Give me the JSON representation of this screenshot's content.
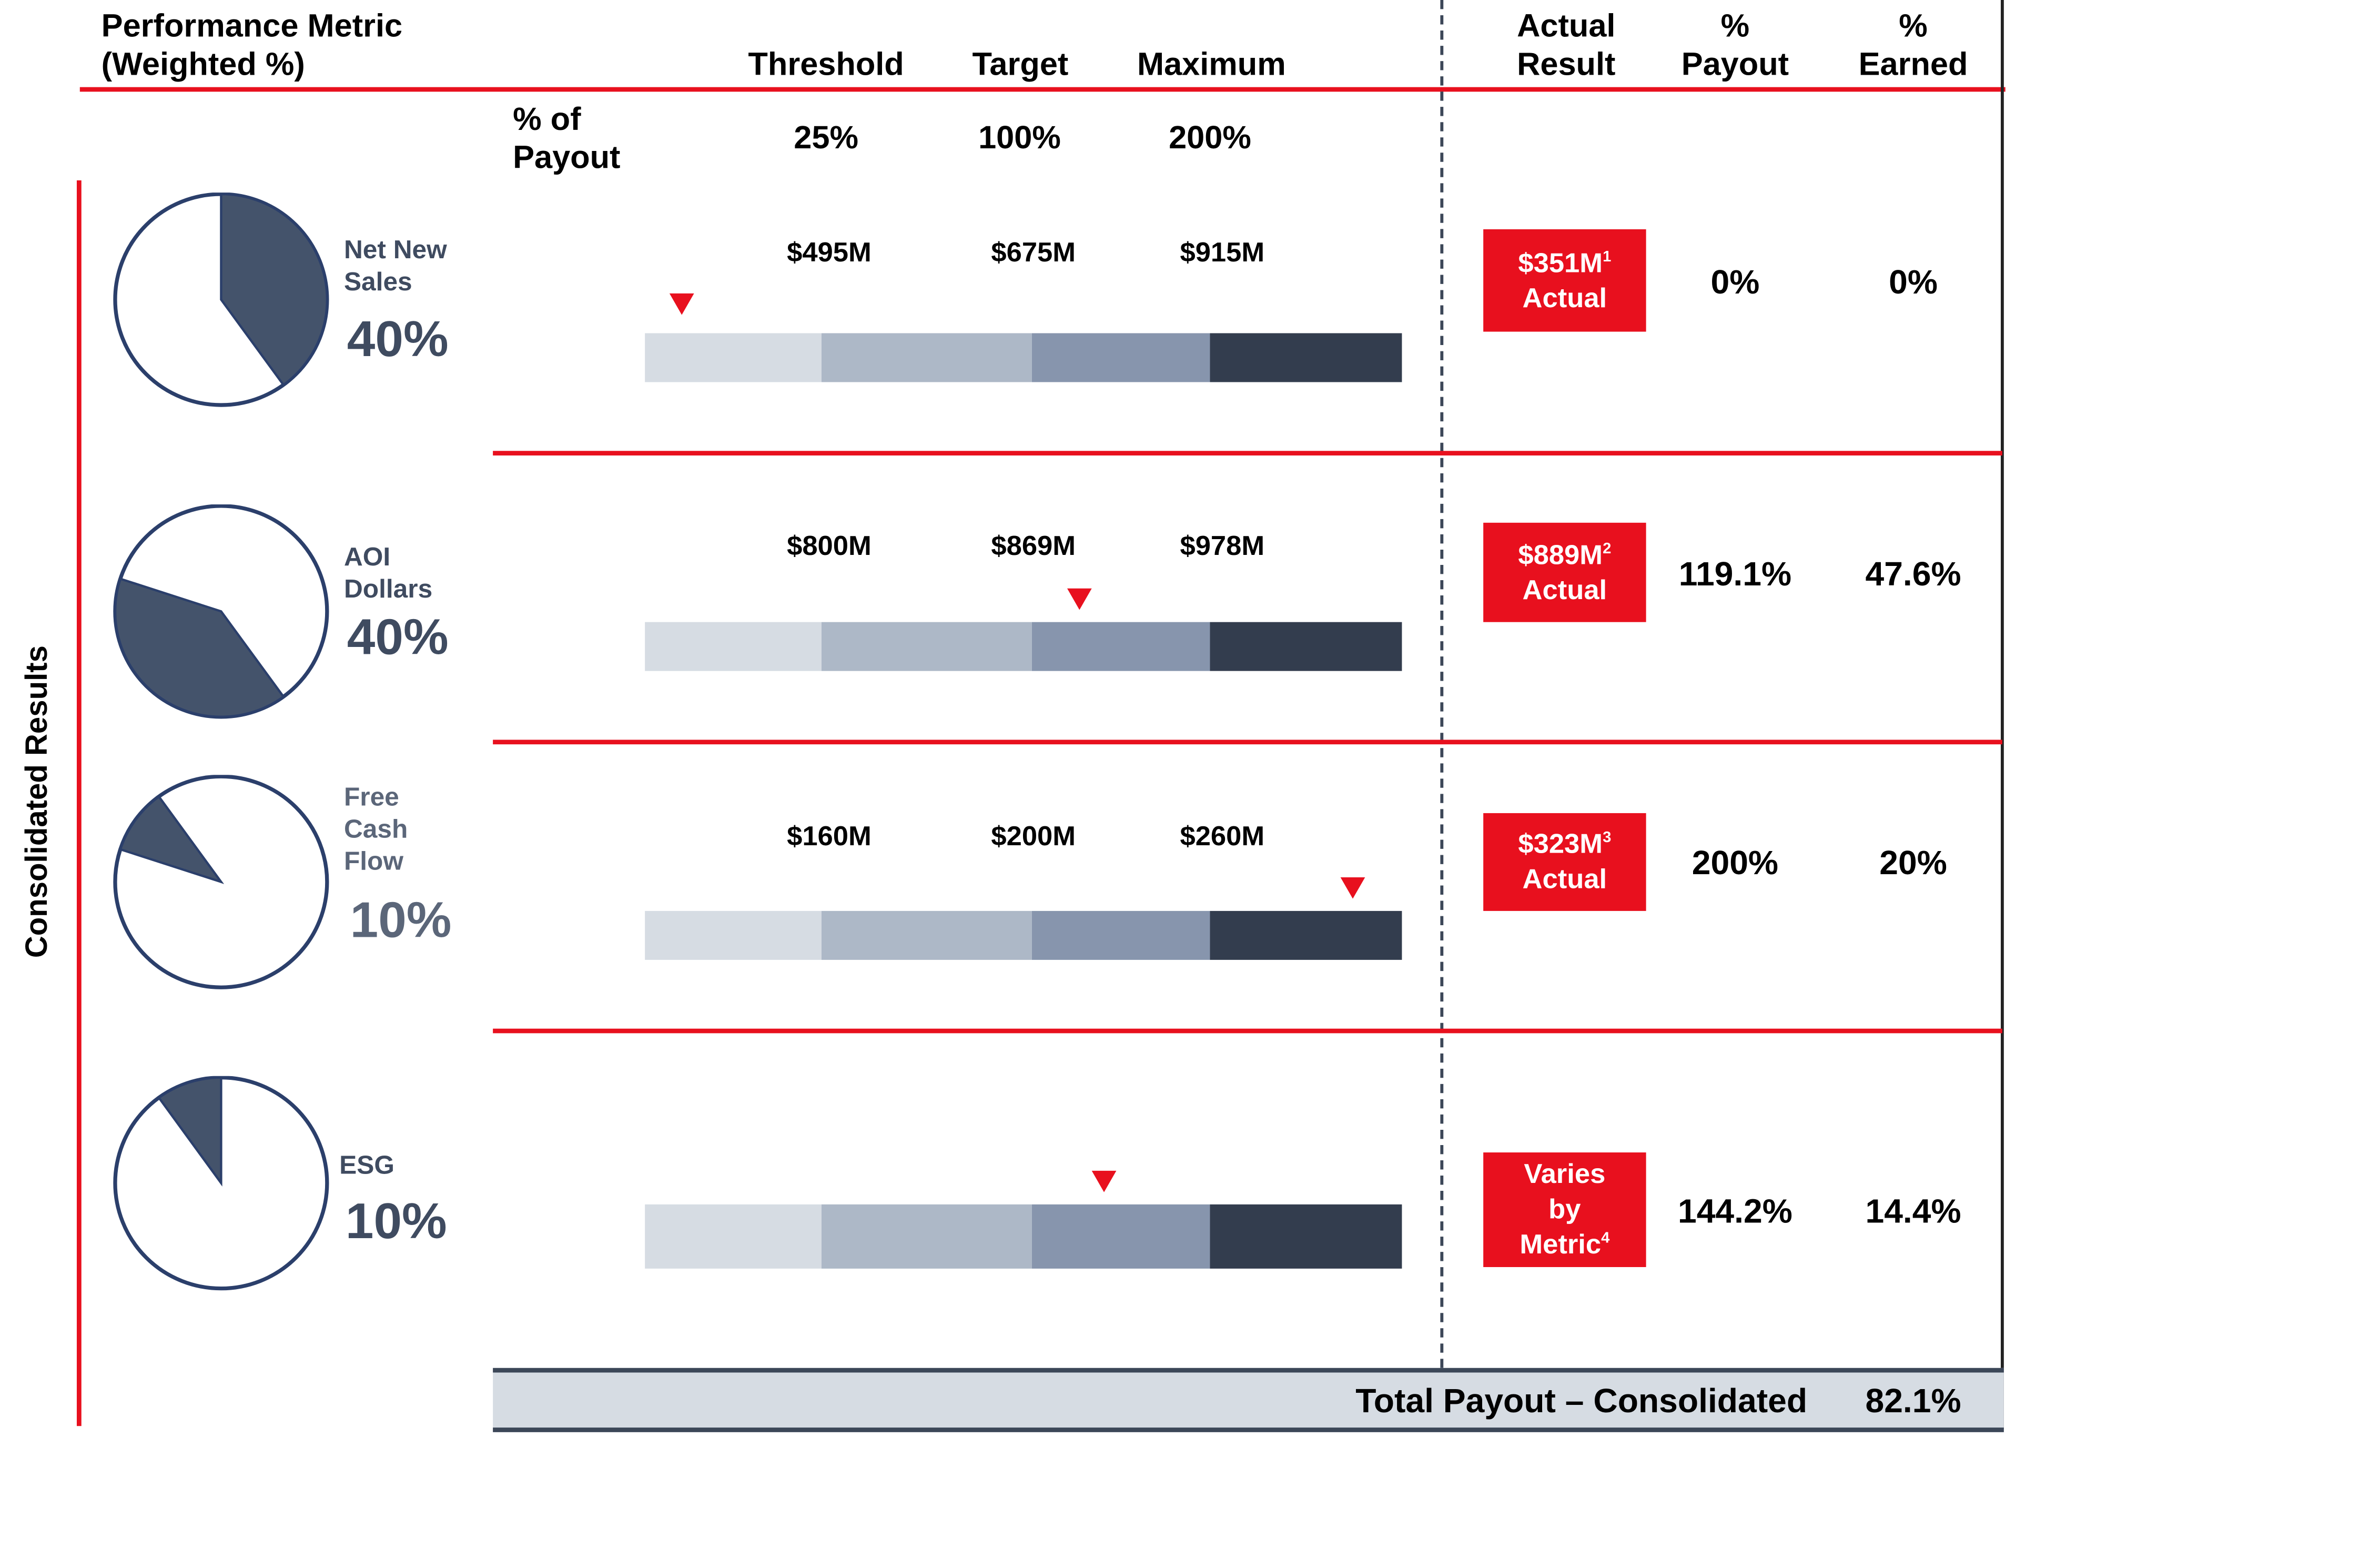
{
  "header": {
    "metric_line1": "Performance Metric",
    "metric_line2": "(Weighted %)",
    "threshold": "Threshold",
    "target": "Target",
    "maximum": "Maximum",
    "actual_line1": "Actual",
    "actual_line2": "Result",
    "payout_line1": "%",
    "payout_line2": "Payout",
    "earned_line1": "%",
    "earned_line2": "Earned"
  },
  "payout_row": {
    "label_line1": "% of",
    "label_line2": "Payout",
    "threshold": "25%",
    "target": "100%",
    "maximum": "200%"
  },
  "side_label": "Consolidated Results",
  "colors": {
    "accent_red": "#e8101e",
    "seg_lightest": "#d6dce3",
    "seg_light": "#adb8c7",
    "seg_mid": "#8795ad",
    "seg_dark": "#333d4e",
    "pie_fill": "#44536b",
    "pie_stroke": "#2b3f6b",
    "metric_text": "#3f4b60"
  },
  "metrics": [
    {
      "name_lines": [
        "Net New",
        "Sales"
      ],
      "weight": "40%",
      "threshold_value": "$495M",
      "target_value": "$675M",
      "maximum_value": "$915M",
      "actual_value": "$351M",
      "actual_note": "1",
      "actual_label": "Actual",
      "payout": "0%",
      "earned": "0%"
    },
    {
      "name_lines": [
        "AOI",
        "Dollars"
      ],
      "weight": "40%",
      "threshold_value": "$800M",
      "target_value": "$869M",
      "maximum_value": "$978M",
      "actual_value": "$889M",
      "actual_note": "2",
      "actual_label": "Actual",
      "payout": "119.1%",
      "earned": "47.6%"
    },
    {
      "name_lines": [
        "Free",
        "Cash",
        "Flow"
      ],
      "weight": "10%",
      "threshold_value": "$160M",
      "target_value": "$200M",
      "maximum_value": "$260M",
      "actual_value": "$323M",
      "actual_note": "3",
      "actual_label": "Actual",
      "payout": "200%",
      "earned": "20%"
    },
    {
      "name_lines": [
        "ESG"
      ],
      "weight": "10%",
      "actual_lines": [
        "Varies",
        "by",
        "Metric"
      ],
      "actual_note": "4",
      "payout": "144.2%",
      "earned": "14.4%"
    }
  ],
  "total": {
    "label": "Total Payout – Consolidated",
    "value": "82.1%"
  },
  "chart_data": {
    "type": "bar",
    "scale_points": [
      "Threshold",
      "Target",
      "Maximum"
    ],
    "scale_payouts_pct": [
      25,
      100,
      200
    ],
    "weights_pct": [
      40,
      40,
      10,
      10
    ],
    "marker_positions_fraction_of_bar": [
      0.05,
      0.575,
      0.93,
      0.608
    ],
    "payout_pct": [
      0,
      119.1,
      200,
      144.2
    ],
    "earned_pct": [
      0,
      47.6,
      20,
      14.4
    ],
    "total_payout_pct": 82.1
  }
}
